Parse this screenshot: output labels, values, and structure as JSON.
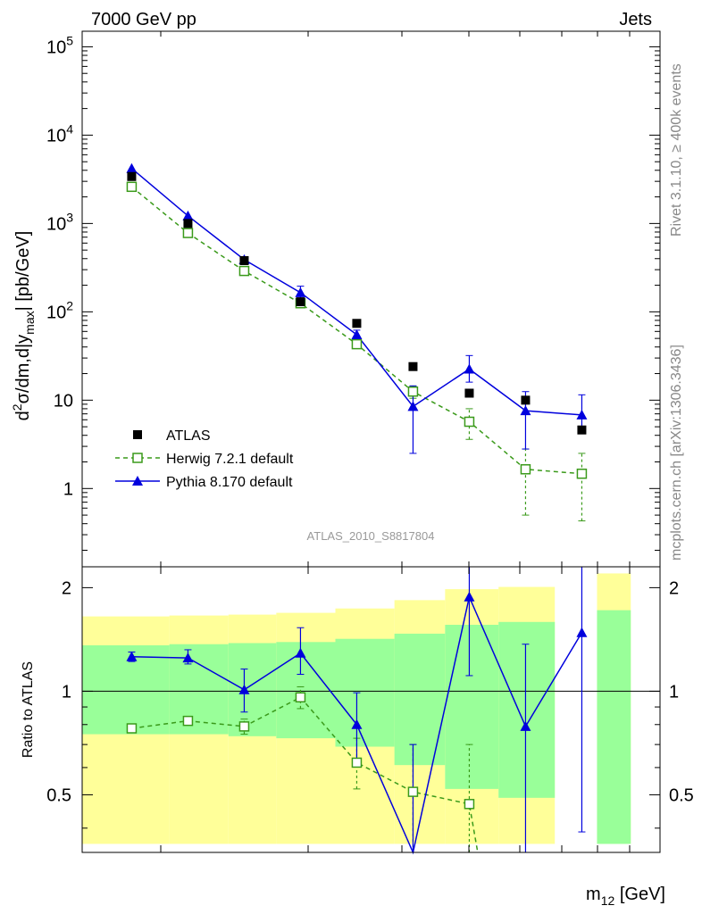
{
  "header": {
    "left": "7000 GeV pp",
    "right": "Jets"
  },
  "side_labels": {
    "rivet": "Rivet 3.1.10, ≥ 400k events",
    "mcplots": "mcplots.cern.ch [arXiv:1306.3436]"
  },
  "watermark": "ATLAS_2010_S8817804",
  "colors": {
    "atlas": "#000000",
    "herwig": "#3a9a1a",
    "pythia": "#0000dd",
    "band_outer": "#ffff99",
    "band_inner": "#99ff99"
  },
  "chart_data": [
    {
      "type": "scatter",
      "panel": "main",
      "ylabel_parts": {
        "d": "d",
        "sup": "2",
        "body": "σ/dm,d|y",
        "sub": "max",
        "tail": "| [pb/GeV]"
      },
      "yscale": "log",
      "ylim": [
        0.13,
        150000
      ],
      "ytick_labels": [
        {
          "value": 1,
          "base": "1",
          "exp": ""
        },
        {
          "value": 10,
          "base": "10",
          "exp": ""
        },
        {
          "value": 100,
          "base": "10",
          "exp": "2"
        },
        {
          "value": 1000,
          "base": "10",
          "exp": "3"
        },
        {
          "value": 10000,
          "base": "10",
          "exp": "4"
        },
        {
          "value": 100000,
          "base": "10",
          "exp": "5"
        }
      ],
      "x": [
        1,
        2,
        3,
        4,
        5,
        6,
        7,
        8,
        9
      ],
      "series": [
        {
          "name": "ATLAS",
          "style": "markers",
          "values": [
            3400,
            1000,
            380,
            130,
            74,
            24,
            12,
            10,
            4.6
          ]
        },
        {
          "name": "Herwig 7.2.1 default",
          "style": "dashed-open-square",
          "values": [
            2600,
            780,
            290,
            125,
            43,
            12.5,
            5.7,
            1.65,
            1.47
          ],
          "err_low": [
            2600,
            780,
            290,
            125,
            43,
            10.5,
            3.6,
            0.5,
            0.43
          ],
          "err_high": [
            2600,
            780,
            290,
            125,
            43,
            14.5,
            8.0,
            2.8,
            2.5
          ]
        },
        {
          "name": "Pythia 8.170 default",
          "style": "solid-triangle",
          "values": [
            4200,
            1220,
            390,
            165,
            55,
            8.5,
            22.5,
            7.6,
            6.8
          ],
          "err_low": [
            4200,
            1220,
            390,
            140,
            48,
            2.5,
            16,
            2.8,
            4.6
          ],
          "err_high": [
            4200,
            1220,
            390,
            195,
            62,
            14.5,
            32,
            12.5,
            11.5
          ]
        }
      ],
      "legend_position": "bottom-left"
    },
    {
      "type": "scatter",
      "panel": "ratio",
      "ylabel": "Ratio to ATLAS",
      "xlabel_parts": {
        "base": "m",
        "sub": "12",
        "tail": " [GeV]"
      },
      "yscale": "log",
      "ylim": [
        0.34,
        2.3
      ],
      "ytick_labels": [
        {
          "value": 0.5,
          "label": "0.5"
        },
        {
          "value": 1,
          "label": "1"
        },
        {
          "value": 2,
          "label": "2"
        }
      ],
      "x": [
        1,
        2,
        3,
        4,
        5,
        6,
        7,
        8,
        9
      ],
      "bands": [
        {
          "x_from": 0.0,
          "x_to": 1.55,
          "outer": [
            0.36,
            1.65
          ],
          "inner": [
            0.75,
            1.36
          ]
        },
        {
          "x_from": 1.55,
          "x_to": 2.6,
          "outer": [
            0.36,
            1.66
          ],
          "inner": [
            0.75,
            1.37
          ]
        },
        {
          "x_from": 2.6,
          "x_to": 3.45,
          "outer": [
            0.36,
            1.67
          ],
          "inner": [
            0.74,
            1.38
          ]
        },
        {
          "x_from": 3.45,
          "x_to": 4.5,
          "outer": [
            0.36,
            1.69
          ],
          "inner": [
            0.73,
            1.39
          ]
        },
        {
          "x_from": 4.5,
          "x_to": 5.55,
          "outer": [
            0.36,
            1.74
          ],
          "inner": [
            0.69,
            1.42
          ]
        },
        {
          "x_from": 5.55,
          "x_to": 6.45,
          "outer": [
            0.36,
            1.84
          ],
          "inner": [
            0.61,
            1.47
          ]
        },
        {
          "x_from": 6.45,
          "x_to": 7.4,
          "outer": [
            0.36,
            1.98
          ],
          "inner": [
            0.52,
            1.56
          ]
        },
        {
          "x_from": 7.4,
          "x_to": 8.4,
          "outer": [
            0.36,
            2.01
          ],
          "inner": [
            0.49,
            1.59
          ]
        },
        {
          "x_from": 9.15,
          "x_to": 9.75,
          "outer": [
            0.36,
            2.2
          ],
          "inner": [
            0.36,
            1.72
          ]
        }
      ],
      "series": [
        {
          "name": "Herwig 7.2.1 default",
          "values": [
            0.78,
            0.82,
            0.79,
            0.96,
            0.62,
            0.51,
            0.47,
            null,
            null
          ],
          "err_low": [
            0.78,
            0.8,
            0.75,
            0.89,
            0.52,
            0.31,
            0.3,
            null,
            null
          ],
          "err_high": [
            0.78,
            0.84,
            0.83,
            1.03,
            0.73,
            0.7,
            0.7,
            null,
            null
          ]
        },
        {
          "name": "Pythia 8.170 default",
          "values": [
            1.26,
            1.25,
            1.01,
            1.29,
            0.8,
            0.34,
            1.88,
            0.79,
            1.48
          ],
          "err_low": [
            1.22,
            1.2,
            0.87,
            1.12,
            0.62,
            0.3,
            1.11,
            0.3,
            0.39
          ],
          "err_high": [
            1.3,
            1.32,
            1.16,
            1.53,
            0.99,
            0.7,
            2.4,
            1.37,
            2.4
          ]
        }
      ]
    }
  ]
}
